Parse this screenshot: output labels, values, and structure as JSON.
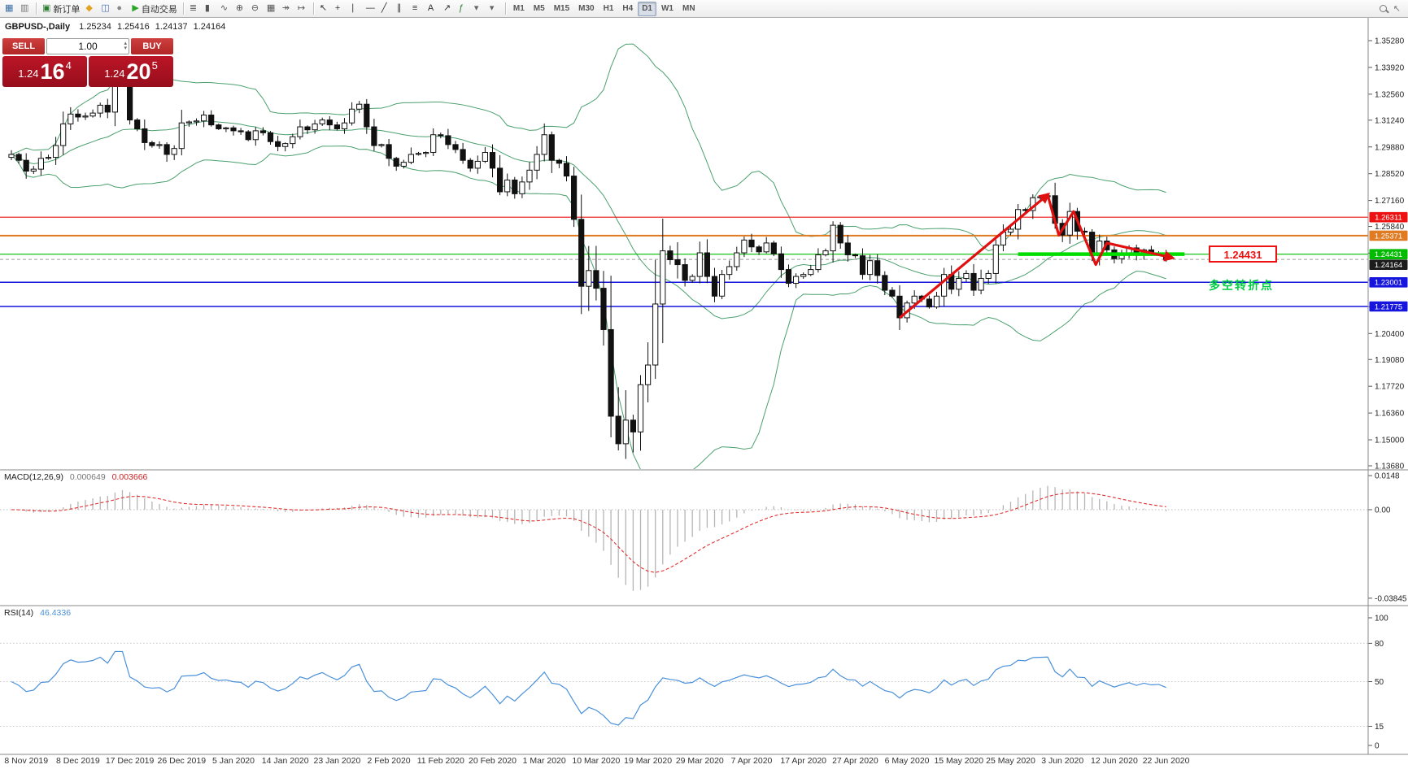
{
  "toolbar": {
    "groups": [
      {
        "name": "charts",
        "items": [
          {
            "name": "new-chart",
            "glyph": "▦",
            "color": "#3a6ea5"
          },
          {
            "name": "chart-profiles",
            "glyph": "▥",
            "color": "#777777"
          }
        ]
      },
      {
        "name": "trade",
        "items": [
          {
            "name": "new-order",
            "glyph": "▣",
            "color": "#2e7d32",
            "label": "新订单"
          },
          {
            "name": "metaeditor",
            "glyph": "◆",
            "color": "#e2a321"
          },
          {
            "name": "terminal",
            "glyph": "◫",
            "color": "#4a6fb5"
          },
          {
            "name": "navigator",
            "glyph": "●",
            "color": "#888888"
          },
          {
            "name": "autotrading",
            "glyph": "▶",
            "color": "#2aa52a",
            "label": "自动交易"
          }
        ]
      },
      {
        "name": "chart-type",
        "items": [
          {
            "name": "bar-chart",
            "glyph": "≣",
            "color": "#555555"
          },
          {
            "name": "candlestick-chart",
            "glyph": "▮",
            "color": "#555555"
          },
          {
            "name": "line-chart",
            "glyph": "∿",
            "color": "#555555"
          },
          {
            "name": "zoom-in",
            "glyph": "⊕",
            "color": "#555555"
          },
          {
            "name": "zoom-out",
            "glyph": "⊖",
            "color": "#555555"
          },
          {
            "name": "tile-windows",
            "glyph": "▦",
            "color": "#555555"
          },
          {
            "name": "auto-scroll",
            "glyph": "↠",
            "color": "#555555"
          },
          {
            "name": "chart-shift",
            "glyph": "↦",
            "color": "#555555"
          }
        ]
      },
      {
        "name": "tools",
        "items": [
          {
            "name": "cursor",
            "glyph": "↖",
            "color": "#333333"
          },
          {
            "name": "crosshair",
            "glyph": "+",
            "color": "#333333"
          },
          {
            "name": "vertical-line",
            "glyph": "∣",
            "color": "#333333"
          },
          {
            "name": "horizontal-line",
            "glyph": "―",
            "color": "#333333"
          },
          {
            "name": "trendline",
            "glyph": "╱",
            "color": "#333333"
          },
          {
            "name": "equidistant-channel",
            "glyph": "∥",
            "color": "#333333"
          },
          {
            "name": "fibonacci",
            "glyph": "≡",
            "color": "#333333"
          },
          {
            "name": "text-label",
            "glyph": "A",
            "color": "#333333"
          },
          {
            "name": "arrows-tool",
            "glyph": "↗",
            "color": "#333333"
          },
          {
            "name": "indicators",
            "glyph": "ƒ",
            "color": "#2e7d32"
          },
          {
            "name": "indicators-dropdown",
            "glyph": "▾",
            "color": "#666666"
          },
          {
            "name": "periods-dropdown",
            "glyph": "▾",
            "color": "#666666"
          }
        ]
      },
      {
        "name": "timeframes",
        "items": [
          {
            "name": "tf-m1",
            "text": "M1"
          },
          {
            "name": "tf-m5",
            "text": "M5"
          },
          {
            "name": "tf-m15",
            "text": "M15"
          },
          {
            "name": "tf-m30",
            "text": "M30"
          },
          {
            "name": "tf-h1",
            "text": "H1"
          },
          {
            "name": "tf-h4",
            "text": "H4"
          },
          {
            "name": "tf-d1",
            "text": "D1",
            "active": true
          },
          {
            "name": "tf-w1",
            "text": "W1"
          },
          {
            "name": "tf-mn",
            "text": "MN"
          }
        ]
      }
    ]
  },
  "icons": {
    "spinner_up": "▴",
    "spinner_down": "▾"
  },
  "chart": {
    "legend": {
      "symbol": "GBPUSD-,Daily",
      "open": "1.25234",
      "high": "1.25416",
      "low": "1.24137",
      "close": "1.24164"
    },
    "trade_widget": {
      "sell_label": "SELL",
      "buy_label": "BUY",
      "volume": "1.00",
      "sell_price": {
        "prefix": "1.24",
        "big": "16",
        "sup": "4"
      },
      "buy_price": {
        "prefix": "1.24",
        "big": "20",
        "sup": "5"
      }
    },
    "annotations": {
      "callout": "1.24431",
      "turning_point": "多空转折点"
    },
    "y_ticks": [
      "1.35280",
      "1.33920",
      "1.32560",
      "1.31240",
      "1.29880",
      "1.28520",
      "1.27160",
      "1.25840",
      "1.24480",
      "1.23120",
      "1.21760",
      "1.20400",
      "1.19080",
      "1.17720",
      "1.16360",
      "1.15000",
      "1.13680"
    ],
    "hlines": [
      {
        "value": 1.26311,
        "label": "1.26311",
        "color": "#ee1111",
        "width": 1.2
      },
      {
        "value": 1.25371,
        "label": "1.25371",
        "color": "#e07b22",
        "width": 2
      },
      {
        "value": 1.24431,
        "label": "1.24431",
        "color": "#00bb00",
        "width": 1.2
      },
      {
        "value": 1.23001,
        "label": "1.23001",
        "color": "#1515dd",
        "width": 1.5
      },
      {
        "value": 1.21775,
        "label": "1.21775",
        "color": "#1515dd",
        "width": 1.5
      }
    ],
    "current_price": {
      "value": 1.24164,
      "label": "1.24164",
      "color": "#1c1c1c"
    },
    "x_labels": [
      "8 Nov 2019",
      "8 Dec 2019",
      "17 Dec 2019",
      "26 Dec 2019",
      "5 Jan 2020",
      "14 Jan 2020",
      "23 Jan 2020",
      "2 Feb 2020",
      "11 Feb 2020",
      "20 Feb 2020",
      "1 Mar 2020",
      "10 Mar 2020",
      "19 Mar 2020",
      "29 Mar 2020",
      "7 Apr 2020",
      "17 Apr 2020",
      "27 Apr 2020",
      "6 May 2020",
      "15 May 2020",
      "25 May 2020",
      "3 Jun 2020",
      "12 Jun 2020",
      "22 Jun 2020"
    ]
  },
  "macd": {
    "title": "MACD(12,26,9)",
    "value_main": "0.000649",
    "value_signal": "0.003666",
    "y_ticks": [
      "0.0148",
      "0.00",
      "-0.03845"
    ]
  },
  "rsi": {
    "title": "RSI(14)",
    "value": "46.4336",
    "y_ticks": [
      "100",
      "80",
      "50",
      "15",
      "0"
    ],
    "levels": [
      80,
      50,
      15
    ]
  },
  "chart_data": {
    "type": "candlestick",
    "symbol": "GBPUSD",
    "timeframe": "Daily",
    "ohlc_display": {
      "open": 1.25234,
      "high": 1.25416,
      "low": 1.24137,
      "close": 1.24164
    },
    "y_range": [
      1.1368,
      1.3528
    ],
    "closes": [
      1.295,
      1.292,
      1.2865,
      1.2875,
      1.293,
      1.2935,
      1.2995,
      1.3105,
      1.3155,
      1.314,
      1.3145,
      1.316,
      1.32,
      1.3165,
      1.333,
      1.333,
      1.3125,
      1.308,
      1.301,
      1.2995,
      1.3,
      1.295,
      1.298,
      1.311,
      1.3115,
      1.312,
      1.315,
      1.31,
      1.308,
      1.3085,
      1.307,
      1.3065,
      1.3025,
      1.307,
      1.306,
      1.3015,
      1.299,
      1.3005,
      1.304,
      1.309,
      1.3075,
      1.3105,
      1.3125,
      1.31,
      1.308,
      1.311,
      1.318,
      1.3205,
      1.309,
      1.2995,
      1.3,
      1.293,
      1.289,
      1.291,
      1.295,
      1.2955,
      1.296,
      1.305,
      1.3045,
      1.3,
      1.2975,
      1.292,
      1.288,
      1.2915,
      1.296,
      1.288,
      1.276,
      1.282,
      1.275,
      1.281,
      1.287,
      1.295,
      1.305,
      1.292,
      1.2905,
      1.284,
      1.262,
      1.228,
      1.236,
      1.227,
      1.206,
      1.162,
      1.148,
      1.16,
      1.154,
      1.178,
      1.188,
      1.219,
      1.246,
      1.2415,
      1.239,
      1.231,
      1.233,
      1.245,
      1.233,
      1.223,
      1.234,
      1.238,
      1.245,
      1.2515,
      1.248,
      1.2455,
      1.25,
      1.2445,
      1.2365,
      1.2295,
      1.233,
      1.234,
      1.2365,
      1.244,
      1.246,
      1.259,
      1.25,
      1.244,
      1.2435,
      1.234,
      1.241,
      1.2335,
      1.226,
      1.223,
      1.212,
      1.2195,
      1.223,
      1.2215,
      1.2175,
      1.223,
      1.234,
      1.2265,
      1.232,
      1.2345,
      1.226,
      1.232,
      1.2345,
      1.249,
      1.2555,
      1.257,
      1.267,
      1.2665,
      1.273,
      1.2735,
      1.274,
      1.26,
      1.254,
      1.266,
      1.256,
      1.2555,
      1.2435,
      1.251,
      1.2465,
      1.242,
      1.245,
      1.2475,
      1.244,
      1.2465,
      1.2445,
      1.245,
      1.2416
    ],
    "indicators": [
      {
        "name": "Bollinger Bands",
        "period": 20,
        "deviation": 2
      },
      {
        "name": "MACD",
        "params": [
          12,
          26,
          9
        ],
        "values": [
          0.000649,
          0.003666
        ],
        "y_range": [
          -0.03845,
          0.0148
        ]
      },
      {
        "name": "RSI",
        "period": 14,
        "value": 46.4336,
        "y_range": [
          0,
          100
        ]
      }
    ],
    "drawings": {
      "trend_arrow": {
        "from": {
          "bar": 120,
          "price": 1.212
        },
        "to": {
          "bar": 140,
          "price": 1.2745
        }
      },
      "zigzag": [
        [
          140,
          1.2745
        ],
        [
          141.5,
          1.254
        ],
        [
          143.5,
          1.266
        ],
        [
          146.5,
          1.239
        ],
        [
          148,
          1.25
        ],
        [
          156.8,
          1.2425
        ]
      ],
      "support_segment": {
        "price": 1.24431,
        "bar_from": 136,
        "bar_to": 158.5
      }
    }
  },
  "colors": {
    "bollinger": "#4ba06e",
    "candle_outline": "#111111",
    "bull_fill": "#ffffff",
    "bear_fill": "#111111",
    "macd_hist": "#b5b5b5",
    "macd_signal": "#e03030",
    "rsi_line": "#4a90d9",
    "drawing_red": "#e01010",
    "support_green": "#00dd00",
    "scale_text": "#222222",
    "axis_text": "#333333"
  }
}
